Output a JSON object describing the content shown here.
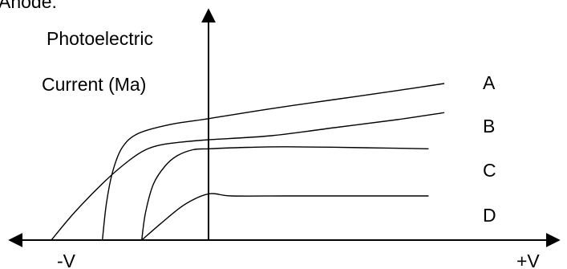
{
  "page": {
    "top_partial_text": "Anode."
  },
  "chart_data": {
    "type": "line",
    "title": "",
    "xlabel": "",
    "ylabel_lines": [
      "Photoelectric",
      "Current (Ma)"
    ],
    "x_tick_labels": {
      "negative": "-V",
      "positive": "+V"
    },
    "xlim": [
      -2.0,
      3.5
    ],
    "ylim": [
      0,
      10
    ],
    "grid": false,
    "legend": "none",
    "series": [
      {
        "name": "A",
        "x": [
          -1.35,
          -1.3,
          -1.22,
          -1.1,
          -0.9,
          -0.5,
          0,
          0.8,
          1.6,
          2.4,
          3.0
        ],
        "y": [
          0,
          1.8,
          3.4,
          4.6,
          5.3,
          5.75,
          6.05,
          6.55,
          7.0,
          7.45,
          7.8
        ]
      },
      {
        "name": "B",
        "x": [
          -2.0,
          -1.7,
          -1.3,
          -1.0,
          -0.8,
          -0.6,
          -0.3,
          0,
          0.8,
          1.6,
          2.4,
          3.0
        ],
        "y": [
          0,
          1.4,
          3.0,
          4.0,
          4.5,
          4.75,
          4.9,
          5.0,
          5.2,
          5.6,
          6.0,
          6.35
        ]
      },
      {
        "name": "C",
        "x": [
          -0.85,
          -0.8,
          -0.7,
          -0.55,
          -0.4,
          -0.2,
          0,
          0.5,
          1.0,
          2.0,
          2.8
        ],
        "y": [
          0,
          1.4,
          2.8,
          3.7,
          4.2,
          4.5,
          4.55,
          4.62,
          4.65,
          4.6,
          4.55
        ]
      },
      {
        "name": "D",
        "x": [
          -0.85,
          -0.6,
          -0.35,
          -0.15,
          0,
          0.1,
          0.3,
          1.0,
          2.0,
          2.8
        ],
        "y": [
          0,
          0.85,
          1.65,
          2.1,
          2.3,
          2.3,
          2.2,
          2.2,
          2.2,
          2.2
        ]
      }
    ],
    "series_labels": [
      "A",
      "B",
      "C",
      "D"
    ]
  }
}
